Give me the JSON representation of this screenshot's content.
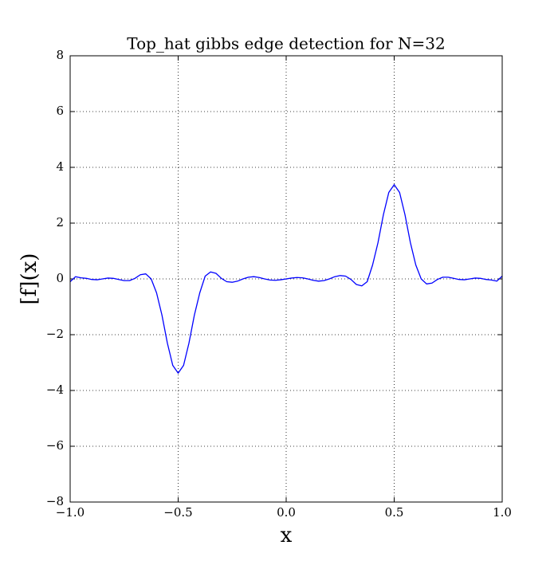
{
  "chart_data": {
    "type": "line",
    "title": "Top_hat gibbs edge detection for N=32",
    "xlabel": "x",
    "ylabel": "[f](x)",
    "x": [
      -1.0,
      -0.975,
      -0.95,
      -0.925,
      -0.9,
      -0.875,
      -0.85,
      -0.825,
      -0.8,
      -0.775,
      -0.75,
      -0.725,
      -0.7,
      -0.675,
      -0.65,
      -0.625,
      -0.6,
      -0.575,
      -0.55,
      -0.525,
      -0.5,
      -0.475,
      -0.45,
      -0.425,
      -0.4,
      -0.375,
      -0.35,
      -0.325,
      -0.3,
      -0.275,
      -0.25,
      -0.225,
      -0.2,
      -0.175,
      -0.15,
      -0.125,
      -0.1,
      -0.075,
      -0.05,
      -0.025,
      0.0,
      0.025,
      0.05,
      0.075,
      0.1,
      0.125,
      0.15,
      0.175,
      0.2,
      0.225,
      0.25,
      0.275,
      0.3,
      0.325,
      0.35,
      0.375,
      0.4,
      0.425,
      0.45,
      0.475,
      0.5,
      0.525,
      0.55,
      0.575,
      0.6,
      0.625,
      0.65,
      0.675,
      0.7,
      0.725,
      0.75,
      0.775,
      0.8,
      0.825,
      0.85,
      0.875,
      0.9,
      0.925,
      0.95,
      0.975,
      1.0
    ],
    "values": [
      -0.1,
      0.08,
      0.04,
      0.02,
      -0.02,
      -0.03,
      0,
      0.03,
      0.02,
      -0.02,
      -0.06,
      -0.06,
      0.02,
      0.15,
      0.18,
      0,
      -0.5,
      -1.3,
      -2.3,
      -3.1,
      -3.38,
      -3.1,
      -2.3,
      -1.3,
      -0.5,
      0.1,
      0.25,
      0.2,
      0.02,
      -0.1,
      -0.12,
      -0.08,
      0,
      0.06,
      0.08,
      0.05,
      0,
      -0.04,
      -0.05,
      -0.03,
      0,
      0.03,
      0.05,
      0.04,
      0,
      -0.05,
      -0.08,
      -0.06,
      0,
      0.08,
      0.12,
      0.1,
      -0.02,
      -0.2,
      -0.25,
      -0.1,
      0.5,
      1.3,
      2.3,
      3.1,
      3.38,
      3.1,
      2.3,
      1.3,
      0.5,
      0,
      -0.18,
      -0.15,
      -0.02,
      0.06,
      0.06,
      0.02,
      -0.02,
      -0.03,
      0,
      0.03,
      0.02,
      -0.02,
      -0.04,
      -0.08,
      0.1
    ],
    "color": "#0000ff",
    "xlim": [
      -1.0,
      1.0
    ],
    "xticks": [
      {
        "value": -1.0,
        "label": "−1.0"
      },
      {
        "value": -0.5,
        "label": "−0.5"
      },
      {
        "value": 0.0,
        "label": "0.0"
      },
      {
        "value": 0.5,
        "label": "0.5"
      },
      {
        "value": 1.0,
        "label": "1.0"
      }
    ],
    "ylim": [
      -8,
      8
    ],
    "yticks": [
      {
        "value": -8,
        "label": "−8"
      },
      {
        "value": -6,
        "label": "−6"
      },
      {
        "value": -4,
        "label": "−4"
      },
      {
        "value": -2,
        "label": "−2"
      },
      0,
      2,
      4,
      6,
      8
    ],
    "grid": true
  }
}
